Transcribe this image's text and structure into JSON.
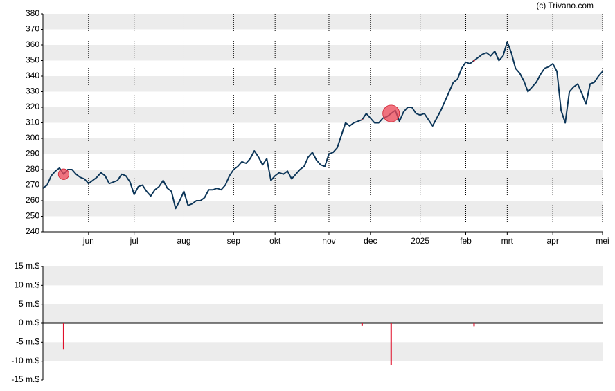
{
  "chart_data": [
    {
      "type": "line",
      "credit": "(c) Trivano.com",
      "color": "#0b3558",
      "marker_color": "#f04a5a",
      "grid": true,
      "categories": [
        null,
        null,
        null,
        null,
        null,
        null,
        null,
        null,
        null,
        null,
        null,
        "jun",
        null,
        null,
        null,
        null,
        null,
        null,
        null,
        null,
        null,
        null,
        "jul",
        null,
        null,
        null,
        null,
        null,
        null,
        null,
        null,
        null,
        null,
        null,
        "aug",
        null,
        null,
        null,
        null,
        null,
        null,
        null,
        null,
        null,
        null,
        null,
        "sep",
        null,
        null,
        null,
        null,
        null,
        null,
        null,
        null,
        null,
        "okt",
        null,
        null,
        null,
        null,
        null,
        null,
        null,
        null,
        null,
        null,
        null,
        null,
        "nov",
        null,
        null,
        null,
        null,
        null,
        null,
        null,
        null,
        null,
        "dec",
        null,
        null,
        null,
        null,
        null,
        null,
        null,
        null,
        null,
        null,
        null,
        "2025",
        null,
        null,
        null,
        null,
        null,
        null,
        null,
        null,
        null,
        null,
        "feb",
        null,
        null,
        null,
        null,
        null,
        null,
        null,
        null,
        null,
        "mrt",
        null,
        null,
        null,
        null,
        null,
        null,
        null,
        null,
        null,
        null,
        "apr",
        null,
        null,
        null,
        null,
        null,
        null,
        null,
        null,
        null,
        null,
        null,
        "mei"
      ],
      "values": [
        268,
        270,
        276,
        279,
        281,
        277,
        280,
        280,
        277,
        275,
        274,
        271,
        273,
        275,
        278,
        276,
        271,
        272,
        273,
        277,
        276,
        272,
        264,
        269,
        270,
        266,
        263,
        267,
        269,
        273,
        268,
        266,
        255,
        260,
        266,
        257,
        258,
        260,
        260,
        262,
        267,
        267,
        268,
        267,
        270,
        276,
        280,
        282,
        285,
        284,
        287,
        292,
        288,
        283,
        287,
        273,
        276,
        278,
        277,
        279,
        274,
        277,
        280,
        282,
        288,
        291,
        286,
        283,
        282,
        290,
        291,
        294,
        302,
        310,
        308,
        310,
        311,
        312,
        316,
        313,
        310,
        310,
        313,
        314,
        316,
        318,
        311,
        317,
        320,
        320,
        316,
        315,
        316,
        312,
        308,
        313,
        318,
        324,
        330,
        336,
        338,
        345,
        349,
        348,
        350,
        352,
        354,
        355,
        353,
        356,
        350,
        353,
        362,
        355,
        345,
        342,
        337,
        330,
        333,
        336,
        341,
        345,
        346,
        348,
        343,
        318,
        310,
        330,
        333,
        335,
        329,
        322,
        335,
        336,
        340,
        343
      ],
      "ylim": [
        240,
        380
      ],
      "yticks": [
        240,
        250,
        260,
        270,
        280,
        290,
        300,
        310,
        320,
        330,
        340,
        350,
        360,
        370,
        380
      ]
    },
    {
      "type": "bar",
      "color": "#e0102b",
      "grid": true,
      "values": [
        null,
        null,
        null,
        null,
        null,
        -7,
        null,
        null,
        null,
        null,
        null,
        null,
        null,
        null,
        null,
        null,
        null,
        null,
        null,
        null,
        null,
        null,
        null,
        null,
        null,
        null,
        null,
        null,
        null,
        null,
        null,
        null,
        null,
        null,
        null,
        null,
        null,
        null,
        null,
        null,
        null,
        null,
        null,
        null,
        null,
        null,
        null,
        null,
        null,
        null,
        null,
        null,
        null,
        null,
        null,
        null,
        null,
        null,
        null,
        null,
        null,
        null,
        null,
        null,
        null,
        null,
        null,
        null,
        null,
        null,
        null,
        null,
        null,
        null,
        null,
        null,
        null,
        -0.7,
        null,
        null,
        null,
        null,
        null,
        null,
        -11,
        null,
        null,
        null,
        null,
        null,
        null,
        null,
        null,
        null,
        null,
        null,
        null,
        null,
        null,
        null,
        null,
        null,
        null,
        null,
        -0.8,
        null,
        null,
        null,
        null,
        null,
        null,
        null,
        null,
        null,
        null,
        null,
        null,
        null,
        null,
        null,
        null,
        null,
        null,
        null,
        null,
        null,
        null,
        null,
        null,
        null,
        null,
        null,
        null,
        null,
        null,
        null
      ],
      "ylim": [
        -15,
        15
      ],
      "yticks": [
        {
          "value": -15,
          "label": "-15 m.$"
        },
        {
          "value": -10,
          "label": "-10 m.$"
        },
        {
          "value": -5,
          "label": "-5 m.$"
        },
        {
          "value": 0,
          "label": "0 m.$"
        },
        {
          "value": 5,
          "label": "5 m.$"
        },
        {
          "value": 10,
          "label": "10 m.$"
        },
        {
          "value": 15,
          "label": "15 m.$"
        }
      ]
    }
  ]
}
